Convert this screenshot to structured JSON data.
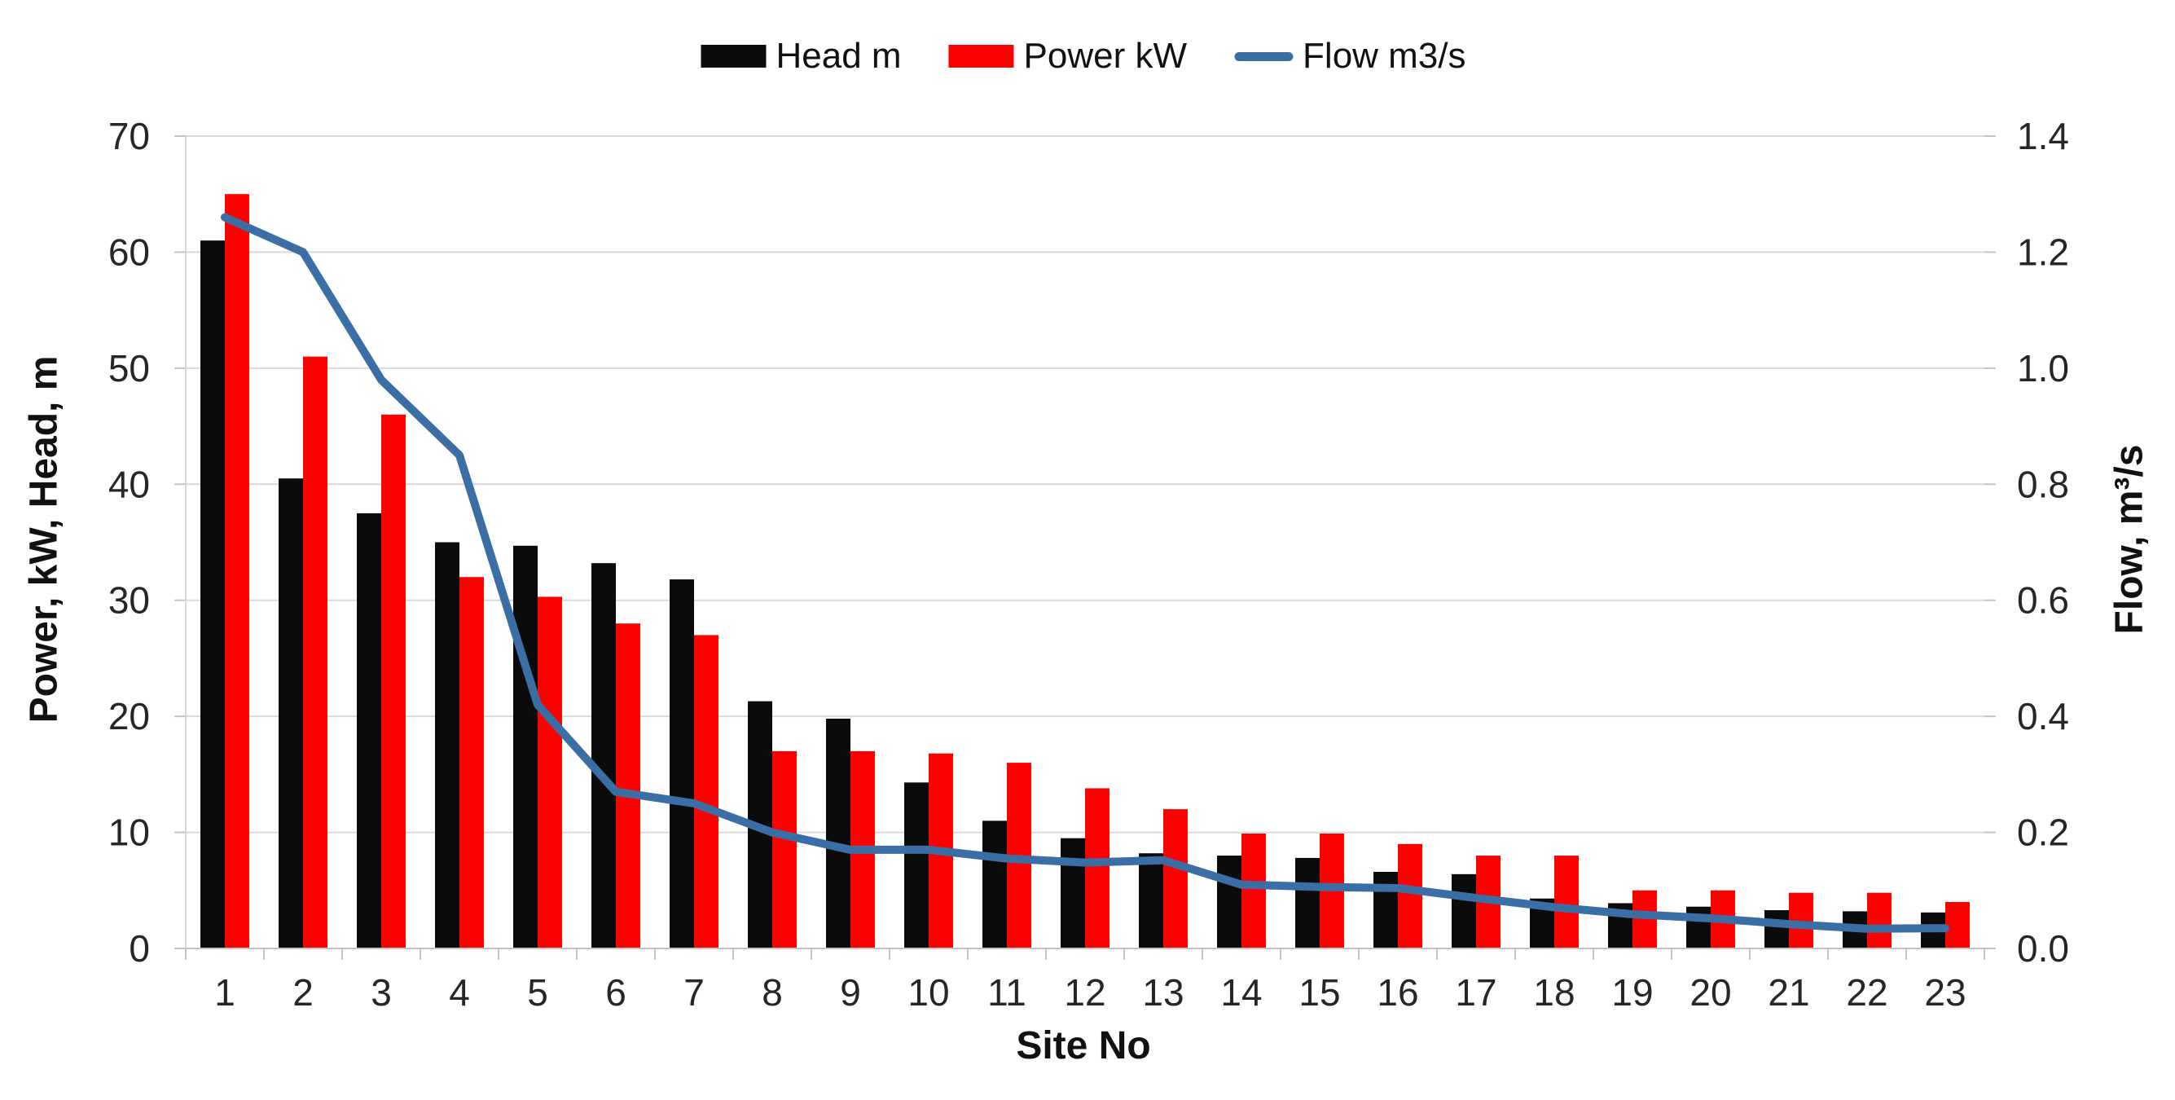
{
  "chart_data": {
    "type": "bar",
    "subtype": "dual-axis bar + line combo",
    "title": "",
    "xlabel": "Site No",
    "ylabel_left": "Power, kW, Head, m",
    "ylabel_right": "Flow, m³/s",
    "categories": [
      1,
      2,
      3,
      4,
      5,
      6,
      7,
      8,
      9,
      10,
      11,
      12,
      13,
      14,
      15,
      16,
      17,
      18,
      19,
      20,
      21,
      22,
      23
    ],
    "series": [
      {
        "name": "Head m",
        "type": "bar",
        "axis": "left",
        "color": "#0b0b0b",
        "values": [
          61,
          40.5,
          37.5,
          35,
          34.7,
          33.2,
          31.8,
          21.3,
          19.8,
          14.3,
          11,
          9.5,
          8.2,
          8,
          7.8,
          6.6,
          6.4,
          4.3,
          3.9,
          3.6,
          3.3,
          3.2,
          3.1
        ]
      },
      {
        "name": "Power kW",
        "type": "bar",
        "axis": "left",
        "color": "#fb0200",
        "values": [
          65,
          51,
          46,
          32,
          30.3,
          28,
          27,
          17,
          17,
          16.8,
          16,
          13.8,
          12,
          9.9,
          9.9,
          9,
          8,
          8,
          5,
          5,
          4.8,
          4.8,
          4
        ]
      },
      {
        "name": "Flow m3/s",
        "type": "line",
        "axis": "right",
        "color": "#3a6ea5",
        "values": [
          1.26,
          1.2,
          0.98,
          0.85,
          0.42,
          0.27,
          0.25,
          0.2,
          0.17,
          0.17,
          0.155,
          0.148,
          0.152,
          0.11,
          0.106,
          0.104,
          0.087,
          0.071,
          0.059,
          0.052,
          0.042,
          0.034,
          0.035
        ]
      }
    ],
    "left_axis": {
      "min": 0,
      "max": 70,
      "ticks": [
        0,
        10,
        20,
        30,
        40,
        50,
        60,
        70
      ]
    },
    "right_axis": {
      "min": 0,
      "max": 1.4,
      "ticks": [
        "0.0",
        "0.2",
        "0.4",
        "0.6",
        "0.8",
        "1.0",
        "1.2",
        "1.4"
      ]
    },
    "grid": true,
    "legend_position": "top"
  },
  "colors": {
    "gridline": "#d9d9d9",
    "axis": "#c3c3c3",
    "tick_text": "#262626",
    "background": "#ffffff"
  }
}
